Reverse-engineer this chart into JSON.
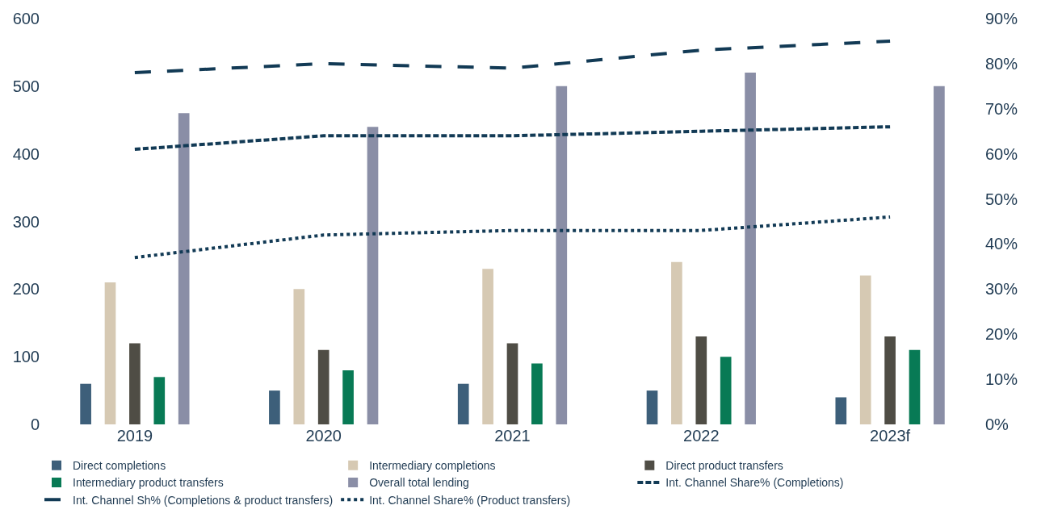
{
  "chart_data": {
    "type": "bar",
    "categories": [
      "2019",
      "2020",
      "2021",
      "2022",
      "2023f"
    ],
    "series": [
      {
        "name": "Direct completions",
        "color": "#3d5f7a",
        "values": [
          60,
          50,
          60,
          50,
          40
        ]
      },
      {
        "name": "Intermediary completions",
        "color": "#d6c9b3",
        "values": [
          210,
          200,
          230,
          240,
          220
        ]
      },
      {
        "name": "Direct product transfers",
        "color": "#4f4d45",
        "values": [
          120,
          110,
          120,
          130,
          130
        ]
      },
      {
        "name": "Intermediary product transfers",
        "color": "#087a55",
        "values": [
          70,
          80,
          90,
          100,
          110
        ]
      },
      {
        "name": "Overall total lending",
        "color": "#8a8ea6",
        "values": [
          460,
          440,
          500,
          520,
          500
        ]
      },
      {
        "name": "Int. Channel Share% (Completions)",
        "type": "line",
        "axis": "y2",
        "line_style": "dashed",
        "color": "#123a55",
        "values": [
          61,
          64,
          64,
          65,
          66
        ]
      },
      {
        "name": "Int. Channel Sh% (Completions & product transfers)",
        "type": "line",
        "axis": "y2",
        "line_style": "longdash",
        "color": "#123a55",
        "values": [
          78,
          80,
          79,
          83,
          85
        ]
      },
      {
        "name": "Int. Channel Share% (Product transfers)",
        "type": "line",
        "axis": "y2",
        "line_style": "dotted",
        "color": "#123a55",
        "values": [
          37,
          42,
          43,
          43,
          46
        ]
      }
    ],
    "ylim": [
      0,
      600
    ],
    "yticks": [
      0,
      100,
      200,
      300,
      400,
      500,
      600
    ],
    "y2lim": [
      0,
      90
    ],
    "y2ticks": [
      {
        "value": 0,
        "label": "0%"
      },
      {
        "value": 10,
        "label": "10%"
      },
      {
        "value": 20,
        "label": "20%"
      },
      {
        "value": 30,
        "label": "30%"
      },
      {
        "value": 40,
        "label": "40%"
      },
      {
        "value": 50,
        "label": "50%"
      },
      {
        "value": 60,
        "label": "60%"
      },
      {
        "value": 70,
        "label": "70%"
      },
      {
        "value": 80,
        "label": "80%"
      },
      {
        "value": 90,
        "label": "90%"
      }
    ],
    "legend": "bottom",
    "marker": "none"
  }
}
